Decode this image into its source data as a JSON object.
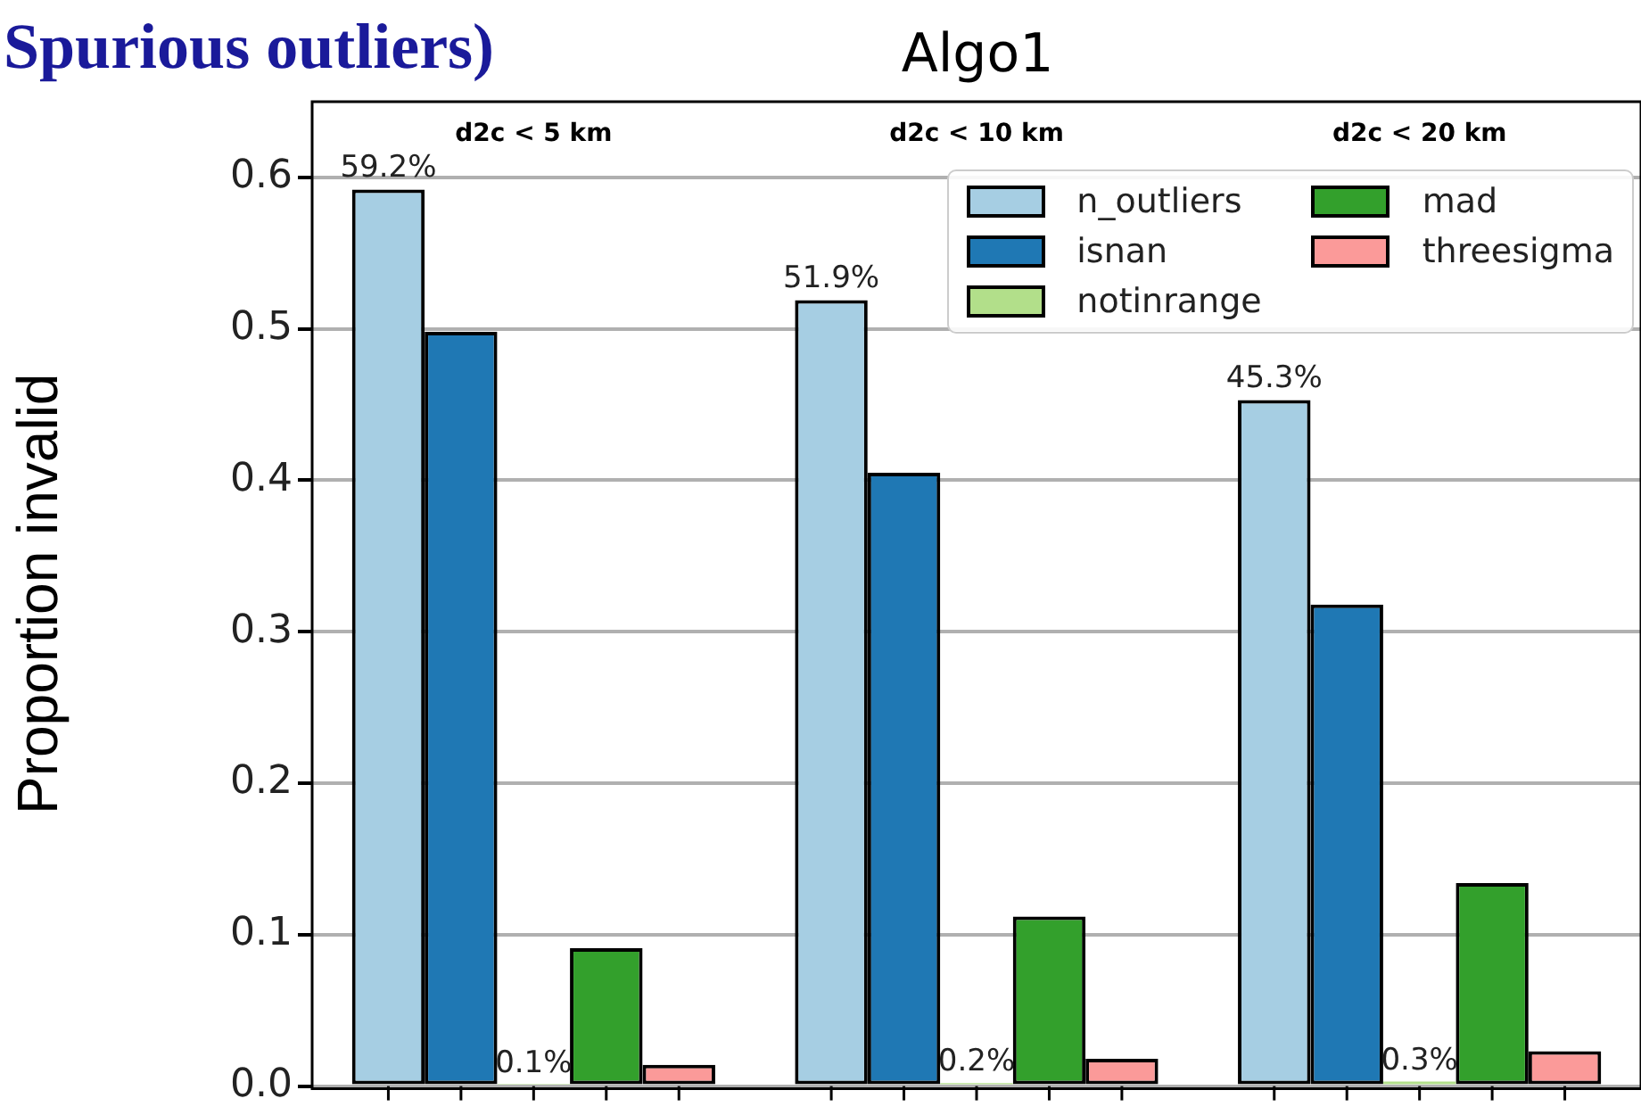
{
  "chart_data": {
    "type": "bar",
    "title": "Algo1",
    "ylabel": "Proportion invalid",
    "annotations": [
      "Spurious outliers)"
    ],
    "categories": [
      "d2c < 5 km",
      "d2c < 10 km",
      "d2c < 20 km"
    ],
    "series": [
      {
        "name": "n_outliers",
        "color": "#a6cee3",
        "values": [
          0.592,
          0.519,
          0.453
        ],
        "value_labels": [
          "59.2%",
          "51.9%",
          "45.3%"
        ]
      },
      {
        "name": "isnan",
        "color": "#1f78b4",
        "values": [
          0.498,
          0.405,
          0.318
        ]
      },
      {
        "name": "notinrange",
        "color": "#b2df8a",
        "values": [
          0.001,
          0.002,
          0.003
        ],
        "value_labels": [
          "0.1%",
          "0.2%",
          "0.3%"
        ]
      },
      {
        "name": "mad",
        "color": "#33a02c",
        "values": [
          0.091,
          0.112,
          0.134
        ]
      },
      {
        "name": "threesigma",
        "color": "#fb9a99",
        "values": [
          0.014,
          0.018,
          0.023
        ]
      }
    ],
    "ylim": [
      0,
      0.65
    ],
    "yticks": [
      {
        "value": 0,
        "label": "0.0"
      },
      0.1,
      0.2,
      0.3,
      0.4,
      0.5,
      0.6
    ],
    "grid": "y",
    "legend": "top right"
  }
}
